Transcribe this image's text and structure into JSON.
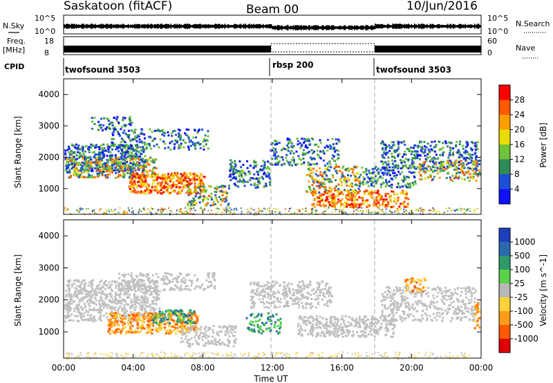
{
  "header": {
    "station": "Saskatoon (fitACF)",
    "beam": "Beam 00",
    "date": "10/Jun/2016"
  },
  "strip": {
    "nsky_label": "N.Sky",
    "nsky_ticks": [
      "10^5",
      "10^0"
    ],
    "nsearch_ticks": [
      "10^5",
      "10^0"
    ],
    "nsearch_label": "N.Search",
    "freq_label_1": "Freq.",
    "freq_label_2": "[MHz]",
    "freq_ticks": [
      "18",
      "8"
    ],
    "nave_ticks": [
      "60",
      "0"
    ],
    "nave_label": "Nave",
    "cpid_label": "CPID",
    "cpid_segments": [
      "twofsound 3503",
      "rbsp 200",
      "twofsound 3503"
    ]
  },
  "chart_data": [
    {
      "type": "heatmap",
      "title": "",
      "xlabel": "",
      "ylabel": "Slant Range [km]",
      "x_range": [
        "00:00",
        "24:00"
      ],
      "ylim": [
        180,
        4500
      ],
      "y_ticks": [
        1000,
        2000,
        3000,
        4000
      ],
      "x_ticks": [
        "00:00",
        "04:00",
        "08:00",
        "12:00",
        "16:00",
        "20:00",
        "00:00"
      ],
      "colorbar": {
        "label": "Power [dB]",
        "ticks": [
          "28",
          "24",
          "20",
          "16",
          "12",
          "8",
          "4"
        ],
        "colors": [
          "#ff0000",
          "#ff5a00",
          "#ff9d00",
          "#e8dc00",
          "#6fc23a",
          "#2e8b57",
          "#1e4fd8",
          "#1010ff"
        ]
      }
    },
    {
      "type": "heatmap",
      "title": "",
      "xlabel": "Time UT",
      "ylabel": "Slant Range [km]",
      "x_range": [
        "00:00",
        "24:00"
      ],
      "ylim": [
        180,
        4500
      ],
      "y_ticks": [
        1000,
        2000,
        3000,
        4000
      ],
      "x_ticks": [
        "00:00",
        "04:00",
        "08:00",
        "12:00",
        "16:00",
        "20:00",
        "00:00"
      ],
      "colorbar": {
        "label": "Velocity [m s^-1]",
        "ticks": [
          "1000",
          "500",
          "100",
          "25",
          "-25",
          "-100",
          "-500",
          "-1000"
        ],
        "colors": [
          "#1f3fbf",
          "#2a6ab0",
          "#2e9a6a",
          "#5ad24a",
          "#b8b8b8",
          "#ffd23a",
          "#ff9a1a",
          "#ff5a00",
          "#e00000"
        ]
      }
    }
  ],
  "colors": {
    "ground_scatter": "#bdbdbd",
    "axis": "#000000"
  }
}
